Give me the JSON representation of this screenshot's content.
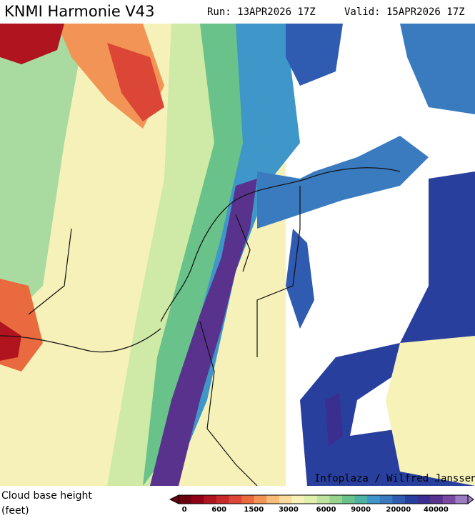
{
  "header": {
    "title": "KNMI Harmonie V43",
    "run": "Run: 13APR2026 17Z",
    "valid": "Valid: 15APR2026 17Z"
  },
  "credit": "Infoplaza / Wilfred Janssen",
  "legend": {
    "label_line1": "Cloud base height",
    "label_line2": "(feet)",
    "ticks": [
      0,
      600,
      1500,
      3000,
      6000,
      9000,
      20000,
      40000
    ],
    "colors": [
      "#6b0010",
      "#8f0016",
      "#b0141e",
      "#c8282a",
      "#dc4636",
      "#ea6a40",
      "#f29455",
      "#f8bb78",
      "#fbdc9c",
      "#f7f2b8",
      "#e2f0ad",
      "#bfe3a0",
      "#96d48c",
      "#69c289",
      "#4cb3a4",
      "#3f97c9",
      "#3a7bc0",
      "#2f5bb0",
      "#283f9e",
      "#3a2f90",
      "#59328e",
      "#7a4aa2",
      "#9c7cc0"
    ]
  }
}
